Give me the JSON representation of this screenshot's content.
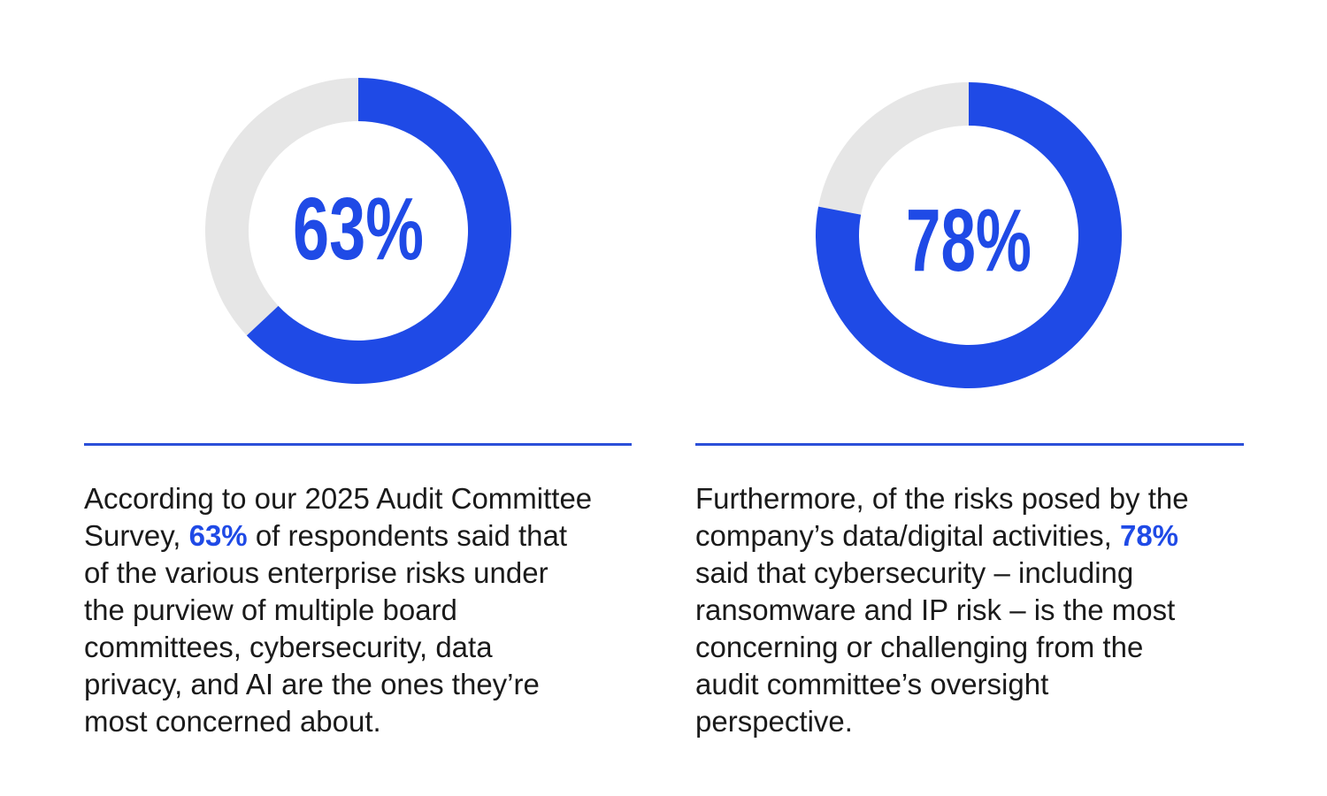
{
  "colors": {
    "accent": "#1f4ae6",
    "track": "#e6e6e6",
    "rule": "#2b4fd8",
    "text": "#1a1a1a"
  },
  "chart_data": [
    {
      "type": "pie",
      "variant": "donut",
      "values": [
        63,
        37
      ],
      "labels": [
        "",
        ""
      ],
      "center_label": "63%"
    },
    {
      "type": "pie",
      "variant": "donut",
      "values": [
        78,
        22
      ],
      "labels": [
        "",
        ""
      ],
      "center_label": "78%"
    }
  ],
  "left_text": {
    "l1": "According to our 2025 Audit Committee",
    "l2_pre": "Survey, ",
    "l2_highlight": "63%",
    "l2_post": " of respondents said that",
    "l3": "of the various enterprise risks under",
    "l4": "the purview of multiple board",
    "l5": "committees, cybersecurity, data",
    "l6": "privacy, and AI are the ones they’re",
    "l7": "most concerned about."
  },
  "right_text": {
    "l1": "Furthermore, of the risks posed by the",
    "l2_pre": "company’s data/digital activities, ",
    "l2_highlight": "78%",
    "l3": "said that cybersecurity – including",
    "l4": "ransomware and IP risk – is the most",
    "l5": "concerning or challenging from the",
    "l6": "audit committee’s oversight",
    "l7": "perspective."
  }
}
